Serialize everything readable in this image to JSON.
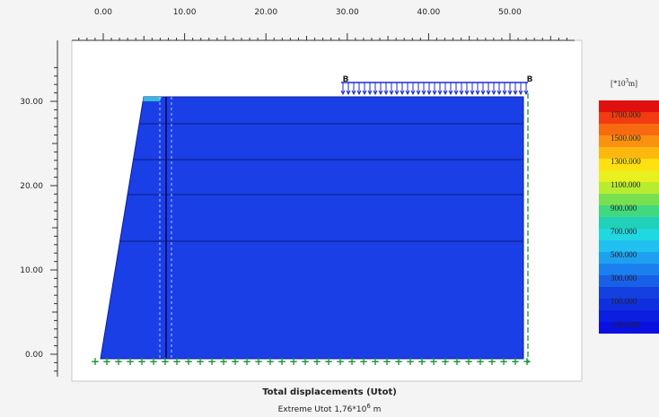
{
  "top_ruler": {
    "labels": [
      "0.00",
      "10.00",
      "20.00",
      "30.00",
      "40.00",
      "50.00"
    ]
  },
  "left_ruler": {
    "labels": [
      "30.00",
      "20.00",
      "10.00",
      "0.00"
    ]
  },
  "load": {
    "start_label": "B",
    "end_label": "B"
  },
  "legend": {
    "unit": {
      "prefix": "[*10",
      "exponent": "3",
      "suffix": "m]"
    },
    "labels": [
      "1700.000",
      "1500.000",
      "1300.000",
      "1100.000",
      "900.000",
      "700.000",
      "500.000",
      "300.000",
      "100.000",
      "-100.000"
    ]
  },
  "caption": {
    "title": "Total displacements (Utot)",
    "subtitle": {
      "prefix": "Extreme Utot 1,76*10",
      "exponent": "6",
      "suffix": " m"
    }
  }
}
